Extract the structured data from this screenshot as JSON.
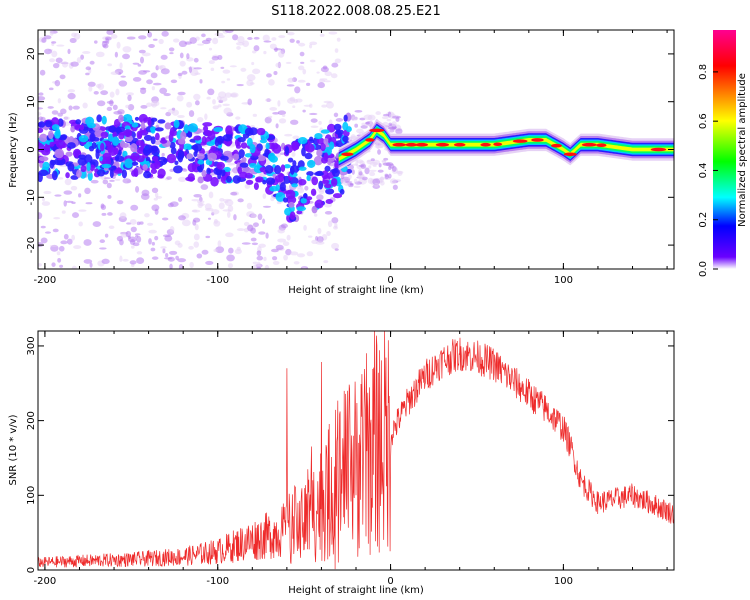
{
  "title": "S118.2022.008.08.25.E21",
  "chart_data": [
    {
      "type": "heatmap",
      "xlabel": "Height of straight line (km)",
      "ylabel": "Frequency (Hz)",
      "xlim": [
        -204,
        164
      ],
      "ylim": [
        -25,
        25
      ],
      "xticks": [
        -200,
        -100,
        0,
        100
      ],
      "yticks": [
        20,
        10,
        0,
        -10,
        -20
      ],
      "colorbar": {
        "label": "Normalized spectral amplitude",
        "ticks": [
          0.0,
          0.2,
          0.4,
          0.6,
          0.8
        ],
        "tick_labels": [
          "0.0",
          "0.2",
          "0.4",
          "0.6",
          "0.8"
        ],
        "range": [
          0,
          0.97
        ],
        "colormap": [
          "#ffffff",
          "#6a00ff",
          "#0000ff",
          "#00ffff",
          "#00ff00",
          "#ffff00",
          "#ff0000",
          "#ff0090"
        ]
      },
      "ridge": {
        "x": [
          -204,
          -180,
          -160,
          -140,
          -120,
          -100,
          -85,
          -75,
          -65,
          -58,
          -50,
          -40,
          -30,
          -20,
          -12,
          -8,
          -4,
          0,
          10,
          20,
          40,
          60,
          70,
          80,
          90,
          95,
          100,
          104,
          110,
          120,
          140,
          164
        ],
        "y": [
          0,
          0,
          1,
          0.5,
          0,
          -1,
          -1,
          -2,
          -4,
          -7,
          -6,
          -4,
          -2,
          0,
          2,
          4,
          3,
          1,
          1,
          1,
          1,
          1,
          1.5,
          2,
          2,
          1,
          0,
          -1,
          1,
          1,
          0,
          0
        ]
      },
      "grid": false
    },
    {
      "type": "line",
      "xlabel": "Height of straight line (km)",
      "ylabel": "SNR (10 * v/v)",
      "xlim": [
        -204,
        164
      ],
      "ylim": [
        0,
        320
      ],
      "xticks": [
        -200,
        -100,
        0,
        100
      ],
      "yticks": [
        0,
        100,
        200,
        300
      ],
      "color": "#ee2a2a",
      "envelope": {
        "x": [
          -204,
          -180,
          -150,
          -120,
          -100,
          -80,
          -65,
          -50,
          -40,
          -30,
          -20,
          -15,
          -10,
          0,
          10,
          20,
          30,
          40,
          50,
          60,
          70,
          80,
          90,
          100,
          105,
          110,
          120,
          130,
          140,
          150,
          164
        ],
        "y": [
          10,
          12,
          14,
          18,
          25,
          40,
          50,
          65,
          90,
          120,
          140,
          150,
          170,
          180,
          225,
          260,
          280,
          290,
          285,
          275,
          255,
          235,
          215,
          190,
          160,
          120,
          90,
          95,
          100,
          90,
          75
        ]
      },
      "grid": false
    }
  ]
}
